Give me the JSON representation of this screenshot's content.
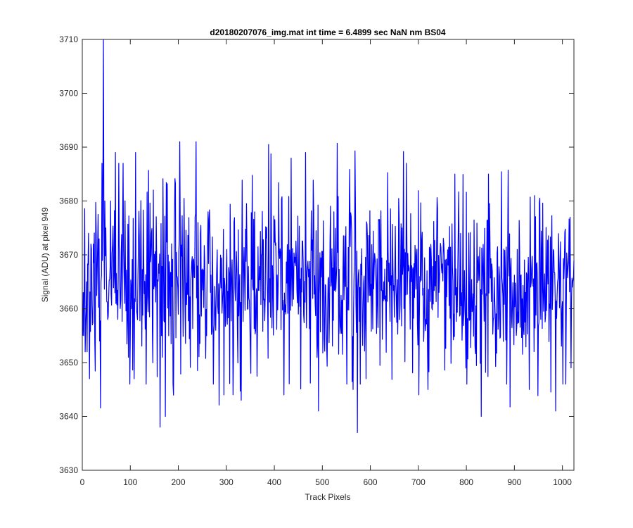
{
  "chart_data": {
    "type": "line",
    "title": "d20180207076_img.mat int time = 6.4899 sec  NaN nm BS04",
    "xlabel": "Track Pixels",
    "ylabel": "Signal (ADU) at pixel 949",
    "xlim": [
      0,
      1024
    ],
    "ylim": [
      3630,
      3710
    ],
    "xticks": [
      0,
      100,
      200,
      300,
      400,
      500,
      600,
      700,
      800,
      900,
      1000
    ],
    "yticks": [
      3630,
      3640,
      3650,
      3660,
      3670,
      3680,
      3690,
      3700,
      3710
    ],
    "grid": false,
    "legend": "none",
    "series": [
      {
        "color": "#0000ff",
        "generation": {
          "n_points": 1024,
          "approx_mean": 3665,
          "approx_range": [
            3637,
            3710
          ],
          "notes": "dense noisy trace; features: max 3710 near x=43, min 3637 near x=572, 3638 near x=161"
        }
      }
    ]
  },
  "colors": {
    "line": "#0000ff",
    "axes": "#262626",
    "background": "#ffffff"
  }
}
